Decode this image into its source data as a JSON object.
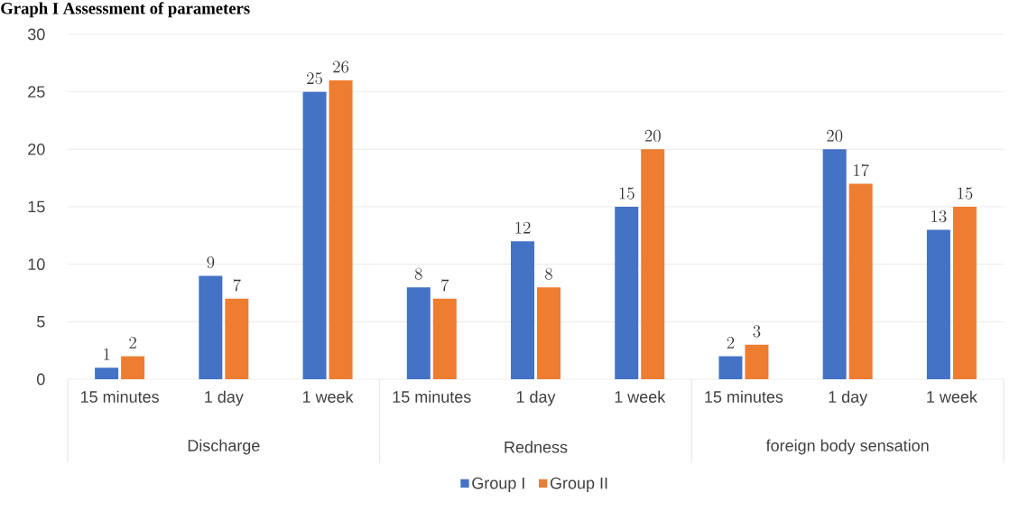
{
  "chart_data": {
    "type": "bar",
    "title": "Graph I Assessment of parameters",
    "categories": [
      "15 minutes",
      "1 day",
      "1 week",
      "15 minutes",
      "1 day",
      "1 week",
      "15 minutes",
      "1 day",
      "1 week"
    ],
    "annotations": [
      "Discharge",
      "Redness",
      "foreign body sensation"
    ],
    "series": [
      {
        "name": "Group I",
        "color": "#4472c4",
        "values": [
          1,
          9,
          25,
          8,
          12,
          15,
          2,
          20,
          13
        ]
      },
      {
        "name": "Group II",
        "color": "#ed7d31",
        "values": [
          2,
          7,
          26,
          7,
          8,
          20,
          3,
          17,
          15
        ]
      }
    ],
    "ylim": [
      0,
      30
    ],
    "yticks": [
      0,
      5,
      10,
      15,
      20,
      25,
      30
    ],
    "grid": "y",
    "data_labels": true,
    "legend": "bottom"
  }
}
